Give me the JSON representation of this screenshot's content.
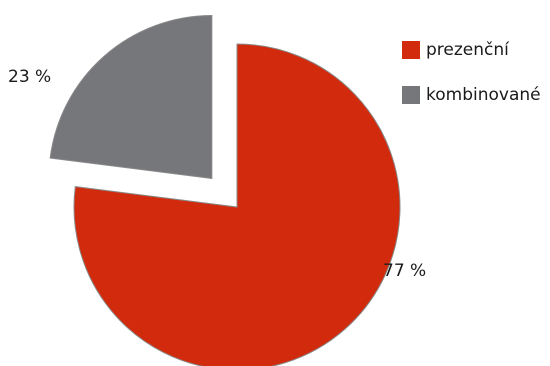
{
  "chart_data": {
    "type": "pie",
    "title": "",
    "series": [
      {
        "name": "prezenční",
        "value": 77,
        "label": "77 %",
        "color": "#d12a0d"
      },
      {
        "name": "kombinované",
        "value": 23,
        "label": "23 %",
        "color": "#76777a",
        "exploded": true
      }
    ],
    "legend_position": "top-right"
  }
}
